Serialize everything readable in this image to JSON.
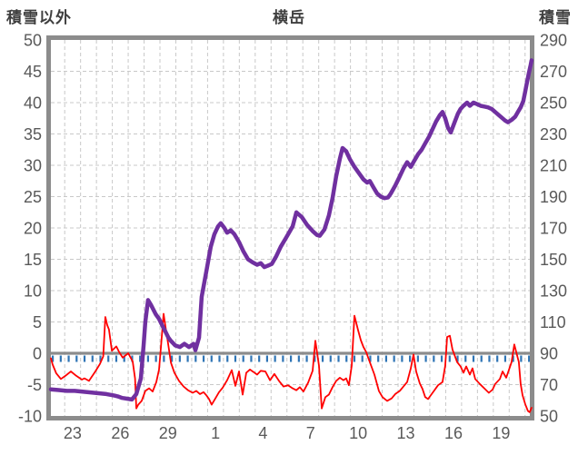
{
  "header": {
    "left_axis_title": "積雪以外",
    "title": "横岳",
    "right_axis_title": "積雪"
  },
  "colors": {
    "snow_series": "#7030A0",
    "other_series": "#FF0000",
    "zero_line": "#8C8C8C",
    "zero_ticks": "#2E74B5",
    "grid": "#C8C8C8",
    "border": "#8C8C8C",
    "axis_text": "#595959",
    "title_text": "#3F3F3F",
    "background": "#FFFFFF"
  },
  "chart_data": {
    "type": "line",
    "title": "横岳",
    "x_axis": {
      "unit": "day",
      "range": [
        0,
        30.17
      ],
      "tick_labels": [
        "23",
        "26",
        "29",
        "1",
        "4",
        "7",
        "10",
        "13",
        "16",
        "19"
      ],
      "tick_label_positions": [
        1.37,
        4.37,
        7.37,
        10.37,
        13.36,
        16.36,
        19.36,
        22.36,
        25.36,
        28.36
      ],
      "gridline_start": 0.87,
      "gridline_step": 1,
      "gridline_count": 30,
      "grid": true
    },
    "left_axis": {
      "title": "積雪以外",
      "range": [
        -10,
        50
      ],
      "step": 5,
      "tick_labels": [
        50,
        45,
        40,
        35,
        30,
        25,
        20,
        15,
        10,
        5,
        0,
        -5,
        -10
      ]
    },
    "right_axis": {
      "title": "積雪",
      "range": [
        50,
        290
      ],
      "step": 20,
      "tick_labels": [
        290,
        270,
        250,
        230,
        210,
        190,
        170,
        150,
        130,
        110,
        90,
        70,
        50
      ]
    },
    "zero_line": {
      "value": 0,
      "tick_interval": 0.5,
      "tick_start": 0.12
    },
    "legend": "none",
    "series": [
      {
        "name": "積雪",
        "axis": "right",
        "color": "#7030A0",
        "width": 4.5,
        "points": [
          [
            0,
            67
          ],
          [
            0.5,
            66.5
          ],
          [
            1,
            66
          ],
          [
            1.5,
            66
          ],
          [
            2,
            65.5
          ],
          [
            2.5,
            65
          ],
          [
            3,
            64.5
          ],
          [
            3.5,
            64
          ],
          [
            4,
            63
          ],
          [
            4.2,
            62.5
          ],
          [
            4.5,
            61.5
          ],
          [
            4.8,
            61
          ],
          [
            5.1,
            60.5
          ],
          [
            5.38,
            64
          ],
          [
            5.67,
            74
          ],
          [
            5.84,
            95
          ],
          [
            5.95,
            110
          ],
          [
            6.12,
            124
          ],
          [
            6.3,
            121
          ],
          [
            6.6,
            115
          ],
          [
            6.81,
            112
          ],
          [
            7,
            108
          ],
          [
            7.21,
            104
          ],
          [
            7.4,
            100
          ],
          [
            7.55,
            98
          ],
          [
            7.84,
            95
          ],
          [
            8.13,
            94
          ],
          [
            8.41,
            96
          ],
          [
            8.7,
            94
          ],
          [
            8.99,
            96
          ],
          [
            9.1,
            92
          ],
          [
            9.33,
            100
          ],
          [
            9.5,
            126
          ],
          [
            9.84,
            145
          ],
          [
            10.07,
            158
          ],
          [
            10.3,
            166
          ],
          [
            10.53,
            171
          ],
          [
            10.7,
            173
          ],
          [
            10.93,
            170
          ],
          [
            11.1,
            167
          ],
          [
            11.33,
            168.5
          ],
          [
            11.56,
            166
          ],
          [
            11.85,
            161
          ],
          [
            12.13,
            155
          ],
          [
            12.42,
            150
          ],
          [
            12.71,
            148
          ],
          [
            12.99,
            146.5
          ],
          [
            13.22,
            147.5
          ],
          [
            13.45,
            145
          ],
          [
            13.68,
            146
          ],
          [
            13.91,
            147
          ],
          [
            14.2,
            152
          ],
          [
            14.48,
            158
          ],
          [
            14.77,
            163
          ],
          [
            15,
            167
          ],
          [
            15.23,
            171
          ],
          [
            15.46,
            180
          ],
          [
            15.8,
            177
          ],
          [
            16.14,
            172
          ],
          [
            16.49,
            168
          ],
          [
            16.77,
            165.5
          ],
          [
            16.94,
            165
          ],
          [
            17.23,
            169
          ],
          [
            17.51,
            178
          ],
          [
            17.74,
            189
          ],
          [
            17.97,
            203
          ],
          [
            18.2,
            214
          ],
          [
            18.37,
            221
          ],
          [
            18.6,
            219
          ],
          [
            18.83,
            214
          ],
          [
            19.12,
            209
          ],
          [
            19.4,
            205
          ],
          [
            19.69,
            201
          ],
          [
            19.92,
            199
          ],
          [
            20.09,
            200
          ],
          [
            20.32,
            196
          ],
          [
            20.55,
            192
          ],
          [
            20.78,
            190
          ],
          [
            21.01,
            189
          ],
          [
            21.24,
            189.5
          ],
          [
            21.41,
            192
          ],
          [
            21.69,
            197
          ],
          [
            21.98,
            203
          ],
          [
            22.21,
            208
          ],
          [
            22.44,
            212
          ],
          [
            22.67,
            209
          ],
          [
            22.9,
            213
          ],
          [
            23.13,
            217
          ],
          [
            23.36,
            220
          ],
          [
            23.58,
            224
          ],
          [
            23.81,
            228
          ],
          [
            24.04,
            233
          ],
          [
            24.27,
            238
          ],
          [
            24.5,
            242
          ],
          [
            24.67,
            244
          ],
          [
            24.84,
            240
          ],
          [
            25.01,
            234
          ],
          [
            25.19,
            231
          ],
          [
            25.41,
            237
          ],
          [
            25.64,
            243
          ],
          [
            25.81,
            246
          ],
          [
            25.99,
            248
          ],
          [
            26.22,
            250
          ],
          [
            26.39,
            248
          ],
          [
            26.62,
            250
          ],
          [
            26.85,
            249
          ],
          [
            27.07,
            248
          ],
          [
            27.3,
            247.5
          ],
          [
            27.53,
            247
          ],
          [
            27.76,
            246
          ],
          [
            27.99,
            244
          ],
          [
            28.22,
            242
          ],
          [
            28.45,
            240
          ],
          [
            28.62,
            238.5
          ],
          [
            28.79,
            237.5
          ],
          [
            29.02,
            239
          ],
          [
            29.25,
            241
          ],
          [
            29.42,
            244
          ],
          [
            29.59,
            247
          ],
          [
            29.76,
            251
          ],
          [
            29.88,
            257
          ],
          [
            29.99,
            263
          ],
          [
            30.11,
            269
          ],
          [
            30.22,
            274
          ],
          [
            30.28,
            277
          ]
        ]
      },
      {
        "name": "積雪以外",
        "axis": "left",
        "color": "#FF0000",
        "width": 1.8,
        "points": [
          [
            0,
            -0.8
          ],
          [
            0.11,
            -1.8
          ],
          [
            0.34,
            -3.2
          ],
          [
            0.63,
            -4.1
          ],
          [
            0.97,
            -3.5
          ],
          [
            1.26,
            -2.9
          ],
          [
            1.6,
            -3.6
          ],
          [
            1.95,
            -4.2
          ],
          [
            2.12,
            -4
          ],
          [
            2.4,
            -4.4
          ],
          [
            2.8,
            -2.9
          ],
          [
            3.09,
            -1.7
          ],
          [
            3.3,
            -0.5
          ],
          [
            3.43,
            5.8
          ],
          [
            3.55,
            4.5
          ],
          [
            3.66,
            3.8
          ],
          [
            3.84,
            0.4
          ],
          [
            4.12,
            1.1
          ],
          [
            4.3,
            0.2
          ],
          [
            4.52,
            -0.7
          ],
          [
            4.87,
            0
          ],
          [
            5.15,
            -1.3
          ],
          [
            5.3,
            -4
          ],
          [
            5.38,
            -8.8
          ],
          [
            5.5,
            -8.2
          ],
          [
            5.72,
            -7.6
          ],
          [
            5.95,
            -6
          ],
          [
            6.18,
            -5.6
          ],
          [
            6.41,
            -6.1
          ],
          [
            6.64,
            -4.6
          ],
          [
            6.81,
            -2.6
          ],
          [
            6.93,
            1
          ],
          [
            7.1,
            6.3
          ],
          [
            7.2,
            4.5
          ],
          [
            7.33,
            2.5
          ],
          [
            7.56,
            -1.5
          ],
          [
            7.78,
            -3.1
          ],
          [
            8.07,
            -4.4
          ],
          [
            8.36,
            -5.3
          ],
          [
            8.64,
            -5.9
          ],
          [
            8.93,
            -6.3
          ],
          [
            9.16,
            -6
          ],
          [
            9.39,
            -6.5
          ],
          [
            9.62,
            -6.2
          ],
          [
            9.79,
            -6.7
          ],
          [
            9.96,
            -7.3
          ],
          [
            10.13,
            -8.2
          ],
          [
            10.36,
            -7.2
          ],
          [
            10.59,
            -6.2
          ],
          [
            10.82,
            -5.5
          ],
          [
            11.1,
            -4.3
          ],
          [
            11.39,
            -2.7
          ],
          [
            11.62,
            -5.2
          ],
          [
            11.85,
            -2.9
          ],
          [
            12.08,
            -6.6
          ],
          [
            12.31,
            -3.1
          ],
          [
            12.54,
            -2.6
          ],
          [
            12.77,
            -3
          ],
          [
            12.99,
            -3.4
          ],
          [
            13.22,
            -2.8
          ],
          [
            13.51,
            -2.9
          ],
          [
            13.8,
            -4.3
          ],
          [
            14.08,
            -3.3
          ],
          [
            14.37,
            -4.4
          ],
          [
            14.65,
            -5.3
          ],
          [
            14.94,
            -5.1
          ],
          [
            15.23,
            -5.6
          ],
          [
            15.46,
            -5.9
          ],
          [
            15.68,
            -5.4
          ],
          [
            15.91,
            -6.1
          ],
          [
            16.2,
            -4.7
          ],
          [
            16.49,
            -2.8
          ],
          [
            16.66,
            2
          ],
          [
            16.89,
            -2
          ],
          [
            17.06,
            -8.8
          ],
          [
            17.29,
            -7
          ],
          [
            17.51,
            -6.6
          ],
          [
            17.74,
            -5.4
          ],
          [
            17.97,
            -4.4
          ],
          [
            18.2,
            -3.9
          ],
          [
            18.43,
            -4.3
          ],
          [
            18.6,
            -4
          ],
          [
            18.77,
            -5.1
          ],
          [
            18.95,
            -2
          ],
          [
            19.12,
            6
          ],
          [
            19.35,
            3.7
          ],
          [
            19.52,
            2.1
          ],
          [
            19.69,
            1
          ],
          [
            19.86,
            0.2
          ],
          [
            20.03,
            -1
          ],
          [
            20.38,
            -3.4
          ],
          [
            20.66,
            -6
          ],
          [
            20.89,
            -7
          ],
          [
            21.18,
            -7.6
          ],
          [
            21.46,
            -7.2
          ],
          [
            21.69,
            -6.5
          ],
          [
            21.98,
            -6
          ],
          [
            22.44,
            -4.6
          ],
          [
            22.67,
            -2.4
          ],
          [
            22.84,
            -0.2
          ],
          [
            23.01,
            -2.9
          ],
          [
            23.24,
            -4.8
          ],
          [
            23.41,
            -5.7
          ],
          [
            23.58,
            -7
          ],
          [
            23.76,
            -7.3
          ],
          [
            24.1,
            -6.1
          ],
          [
            24.39,
            -5.1
          ],
          [
            24.67,
            -4.6
          ],
          [
            24.84,
            -2
          ],
          [
            24.96,
            2.6
          ],
          [
            25.13,
            2.8
          ],
          [
            25.3,
            0.6
          ],
          [
            25.59,
            -1.4
          ],
          [
            25.81,
            -2.1
          ],
          [
            25.99,
            -3.1
          ],
          [
            26.16,
            -2.1
          ],
          [
            26.39,
            -3.4
          ],
          [
            26.56,
            -2.4
          ],
          [
            26.73,
            -4.1
          ],
          [
            27.02,
            -4.9
          ],
          [
            27.3,
            -5.6
          ],
          [
            27.59,
            -6.3
          ],
          [
            27.82,
            -5.8
          ],
          [
            27.99,
            -4.9
          ],
          [
            28.28,
            -4.1
          ],
          [
            28.45,
            -2.9
          ],
          [
            28.68,
            -3.9
          ],
          [
            28.85,
            -2.7
          ],
          [
            29.02,
            -1.4
          ],
          [
            29.19,
            1.4
          ],
          [
            29.48,
            -1.4
          ],
          [
            29.59,
            -4.9
          ],
          [
            29.71,
            -6.7
          ],
          [
            29.88,
            -8.1
          ],
          [
            30.05,
            -9.2
          ],
          [
            30.16,
            -9.4
          ],
          [
            30.28,
            -8.7
          ]
        ]
      }
    ]
  }
}
